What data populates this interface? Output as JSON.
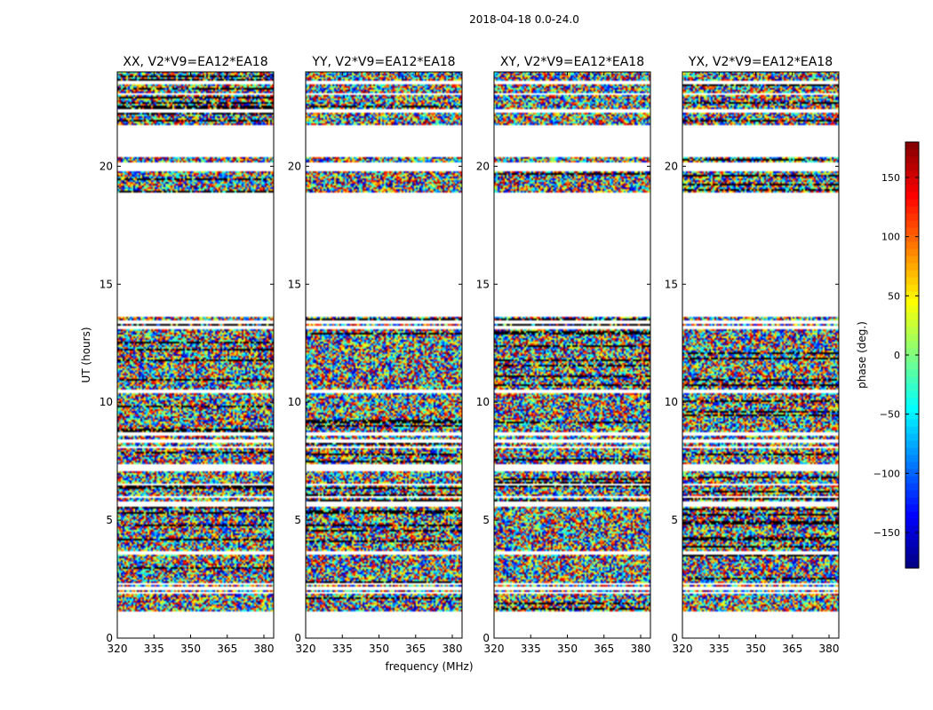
{
  "figure": {
    "suptitle": "2018-04-18 0.0-24.0",
    "shared_xlabel": "frequency (MHz)",
    "shared_ylabel": "UT (hours)"
  },
  "chart_data": {
    "type": "heatmap",
    "quantity": "visibility phase",
    "x_unit": "MHz",
    "y_unit": "hours",
    "xlim": [
      320,
      384
    ],
    "ylim": [
      0,
      24
    ],
    "xticks": [
      320,
      335,
      350,
      365,
      380
    ],
    "yticks": [
      0,
      5,
      10,
      15,
      20
    ],
    "panels": [
      {
        "title": "XX, V2*V9=EA12*EA18",
        "pol": "XX"
      },
      {
        "title": "YY, V2*V9=EA12*EA18",
        "pol": "YY"
      },
      {
        "title": "XY, V2*V9=EA12*EA18",
        "pol": "XY"
      },
      {
        "title": "YX, V2*V9=EA12*EA18",
        "pol": "YX"
      }
    ],
    "data_time_ranges_hours": [
      [
        1.1,
        1.85
      ],
      [
        1.95,
        2.05
      ],
      [
        2.15,
        2.25
      ],
      [
        2.35,
        3.55
      ],
      [
        3.65,
        5.6
      ],
      [
        5.8,
        5.95
      ],
      [
        6.05,
        6.5
      ],
      [
        6.55,
        7.1
      ],
      [
        7.4,
        8.05
      ],
      [
        8.15,
        8.3
      ],
      [
        8.45,
        8.55
      ],
      [
        8.7,
        10.2
      ],
      [
        10.25,
        10.4
      ],
      [
        10.5,
        13.1
      ],
      [
        13.25,
        13.35
      ],
      [
        13.45,
        13.65
      ],
      [
        18.9,
        19.8
      ],
      [
        20.15,
        20.4
      ],
      [
        21.75,
        22.3
      ],
      [
        22.4,
        23.0
      ],
      [
        23.1,
        23.5
      ],
      [
        23.6,
        23.9
      ],
      [
        23.95,
        24.0
      ]
    ],
    "colorbar": {
      "label": "phase (deg.)",
      "range": [
        -180,
        180
      ],
      "ticks": [
        -150,
        -100,
        -50,
        0,
        50,
        100,
        150
      ],
      "tick_labels": [
        "−150",
        "−100",
        "−50",
        "0",
        "50",
        "100",
        "150"
      ],
      "colormap": "jet",
      "colors": [
        "#00007f",
        "#0000ff",
        "#007fff",
        "#00ffff",
        "#7fff7f",
        "#ffff00",
        "#ff7f00",
        "#ff0000",
        "#7f0000"
      ]
    }
  }
}
